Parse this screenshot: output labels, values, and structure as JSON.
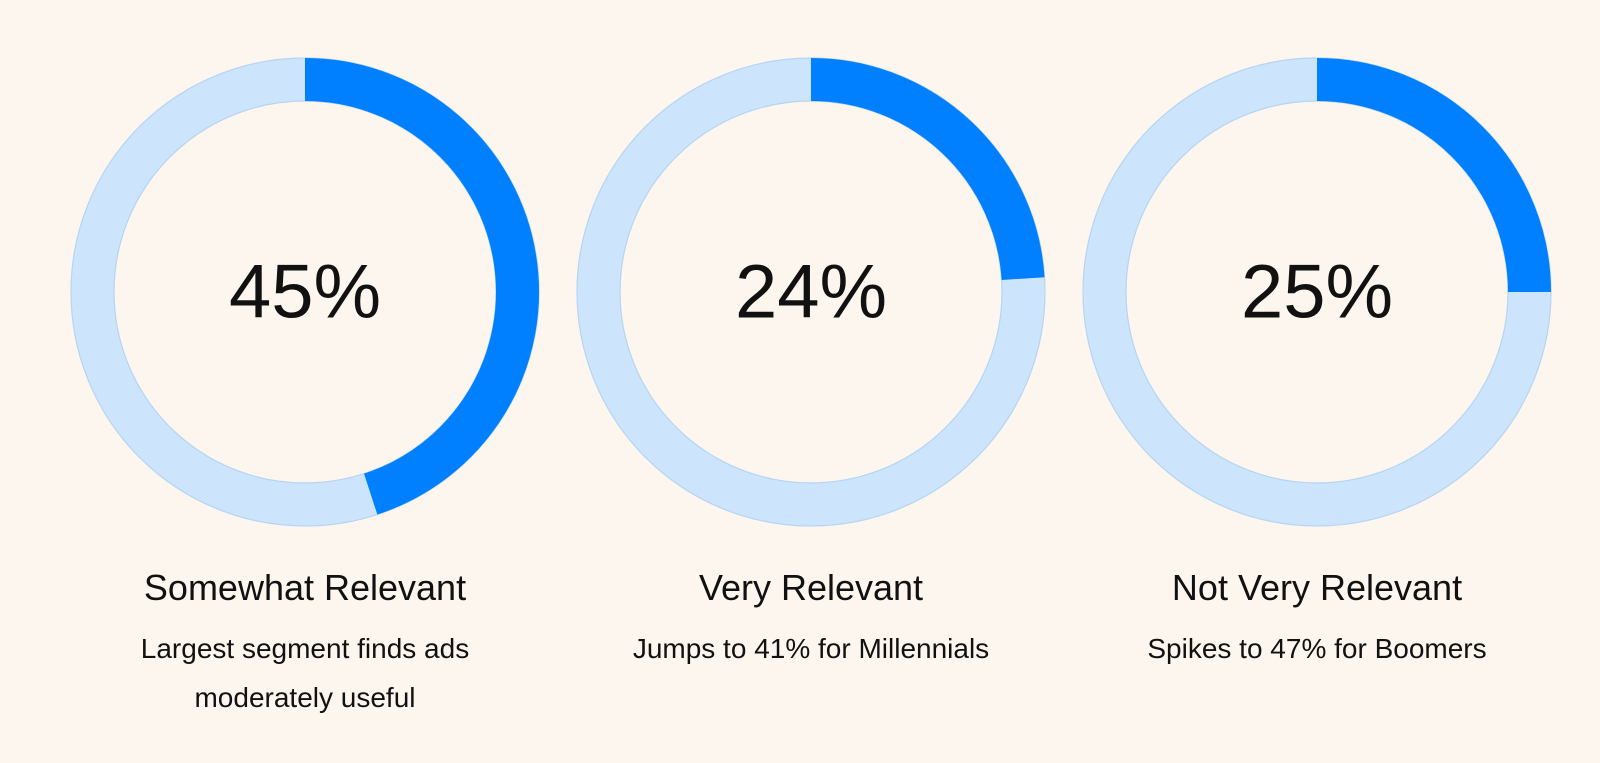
{
  "chart_data": {
    "type": "donut",
    "max": 100,
    "colors": {
      "value": "#0080ff",
      "track": "#cce5fd",
      "track_edge": "#b6d4f2",
      "background": "#fdf6ee"
    },
    "items": [
      {
        "value": 45,
        "value_label": "45%",
        "title": "Somewhat Relevant",
        "note": "Largest segment finds ads moderately useful"
      },
      {
        "value": 24,
        "value_label": "24%",
        "title": "Very Relevant",
        "note": "Jumps to 41% for Millennials"
      },
      {
        "value": 25,
        "value_label": "25%",
        "title": "Not Very Relevant",
        "note": "Spikes to 47% for Boomers"
      }
    ]
  }
}
